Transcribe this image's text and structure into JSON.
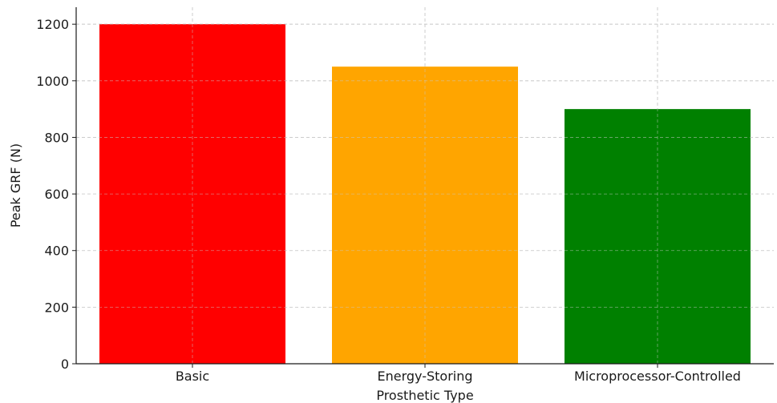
{
  "chart_data": {
    "type": "bar",
    "categories": [
      "Basic",
      "Energy-Storing",
      "Microprocessor-Controlled"
    ],
    "values": [
      1200,
      1050,
      900
    ],
    "colors": [
      "#ff0000",
      "#ffa500",
      "#008000"
    ],
    "title": "",
    "xlabel": "Prosthetic Type",
    "ylabel": "Peak GRF (N)",
    "ylim": [
      0,
      1260
    ],
    "yticks": [
      0,
      200,
      400,
      600,
      800,
      1000,
      1200
    ],
    "grid": true
  }
}
